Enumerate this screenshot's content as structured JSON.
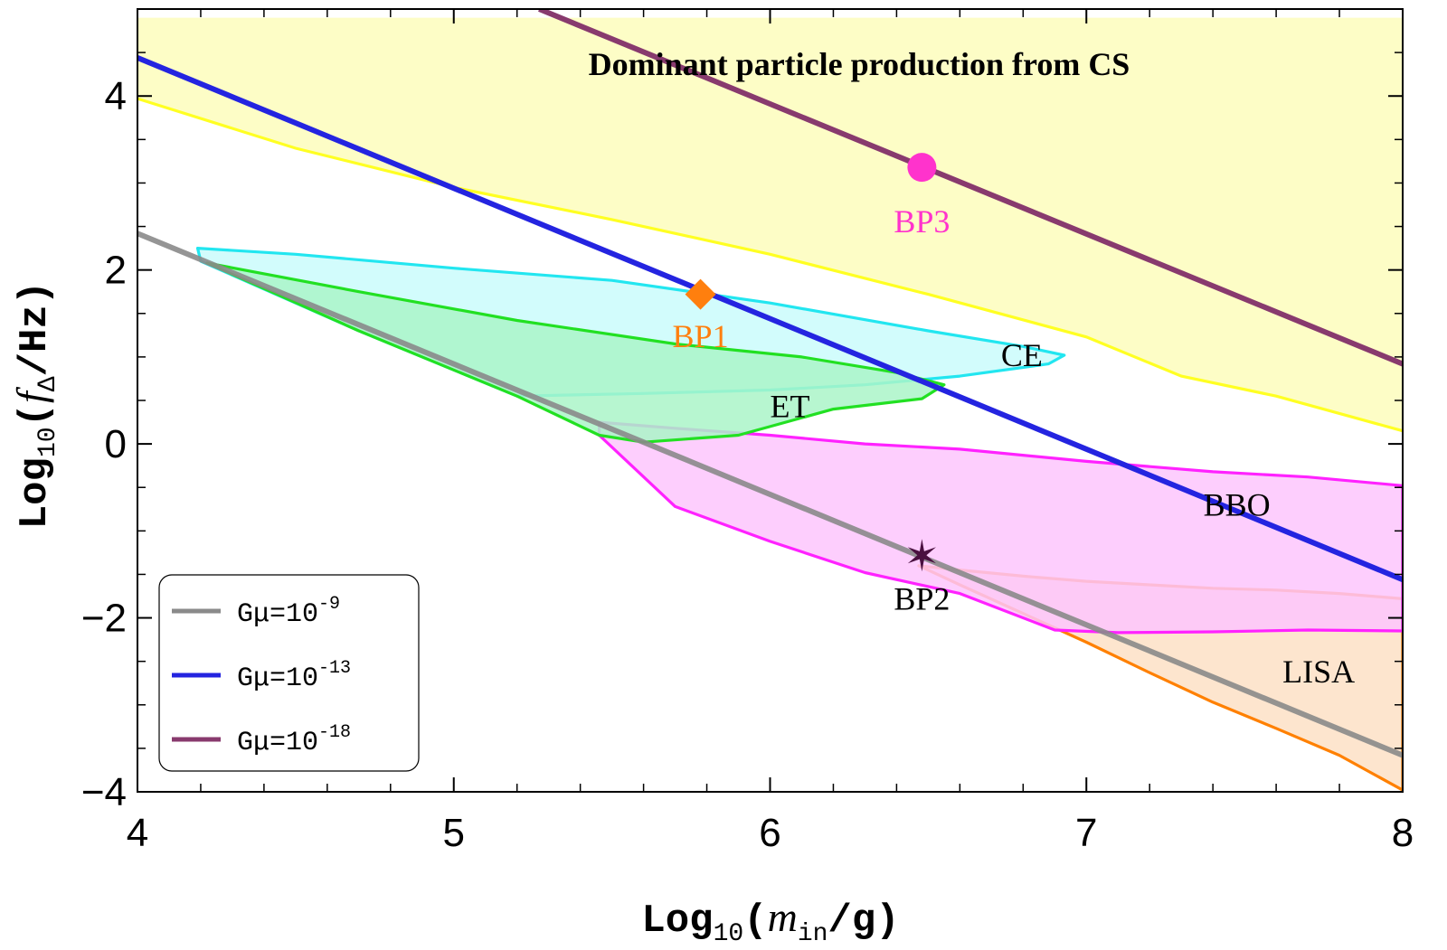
{
  "chart_data": {
    "type": "line",
    "title": "Dominant particle production from CS",
    "xlabel": {
      "main": "Log",
      "sub": "10",
      "open": "(",
      "var": "m",
      "varsub": "in",
      "rest": "/g)"
    },
    "ylabel": {
      "main": "Log",
      "sub": "10",
      "open": "(",
      "var": "f",
      "varsub": "Δ",
      "rest": "/Hz)"
    },
    "xlim": [
      4,
      8
    ],
    "ylim": [
      -4,
      5
    ],
    "xticks": [
      4,
      5,
      6,
      7,
      8
    ],
    "xtick_labels": [
      "4",
      "5",
      "6",
      "7",
      "8"
    ],
    "yticks": [
      -4,
      -2,
      0,
      2,
      4
    ],
    "ytick_labels": [
      "−4",
      "−2",
      "0",
      "2",
      "4"
    ],
    "grid": false,
    "colors": {
      "gmu9": "#8a8a8a",
      "gmu13": "#2424e0",
      "gmu18": "#883a6e",
      "yellow_fill": "#fdfdc6",
      "yellow_line": "#ffff22",
      "ce_line": "#22e6f0",
      "ce_fill": "#cafcfc",
      "et_line": "#22e022",
      "et_fill": "#aaf5c8",
      "bbo_line": "#ff22ff",
      "bbo_fill": "#fdc6fd",
      "lisa_line": "#ff8000",
      "lisa_fill": "#fde0c6",
      "bp1": "#ff7f0e",
      "bp2": "#4a1040",
      "bp3": "#ff33cc"
    },
    "series": [
      {
        "name": "Gμ=10^-9",
        "key": "gmu9",
        "x": [
          4,
          8
        ],
        "y": [
          2.42,
          -3.58
        ]
      },
      {
        "name": "Gμ=10^-13",
        "key": "gmu13",
        "x": [
          4,
          8
        ],
        "y": [
          4.44,
          -1.56
        ]
      },
      {
        "name": "Gμ=10^-18",
        "key": "gmu18",
        "x": [
          5.27,
          8
        ],
        "y": [
          5.0,
          0.92
        ]
      }
    ],
    "regions": [
      {
        "name": "Dominant particle production from CS",
        "key": "yellow",
        "x": [
          4,
          4.5,
          5,
          5.5,
          6,
          6.5,
          7,
          7.3,
          7.6,
          7.8,
          8,
          8,
          4
        ],
        "y": [
          3.97,
          3.4,
          2.95,
          2.58,
          2.18,
          1.72,
          1.23,
          0.78,
          0.55,
          0.35,
          0.15,
          4.9,
          4.9
        ]
      },
      {
        "name": "LISA",
        "key": "lisa",
        "x": [
          6.47,
          6.6,
          6.8,
          7.0,
          7.2,
          7.4,
          7.6,
          7.8,
          8.0,
          8.0,
          7.8,
          7.6,
          7.4,
          7.2,
          7.0,
          6.8,
          6.6,
          6.47
        ],
        "y": [
          -1.4,
          -1.45,
          -1.52,
          -1.58,
          -1.62,
          -1.66,
          -1.68,
          -1.72,
          -1.78,
          -3.98,
          -3.58,
          -3.27,
          -2.97,
          -2.63,
          -2.28,
          -1.95,
          -1.62,
          -1.4
        ]
      },
      {
        "name": "BBO",
        "key": "bbo",
        "x": [
          5.46,
          5.7,
          6.0,
          6.3,
          6.6,
          7.0,
          7.4,
          7.7,
          8.0,
          8.0,
          7.7,
          7.4,
          7.1,
          6.9,
          6.6,
          6.3,
          6.0,
          5.7,
          5.46
        ],
        "y": [
          0.25,
          0.18,
          0.1,
          0.0,
          -0.06,
          -0.2,
          -0.32,
          -0.38,
          -0.48,
          -2.15,
          -2.14,
          -2.16,
          -2.17,
          -2.14,
          -1.72,
          -1.48,
          -1.12,
          -0.72,
          0.1
        ]
      },
      {
        "name": "CE",
        "key": "ce",
        "x": [
          4.19,
          4.5,
          5.0,
          5.5,
          6.0,
          6.5,
          6.8,
          6.93,
          6.88,
          6.6,
          6.3,
          6.0,
          5.6,
          5.2,
          4.7,
          4.2,
          4.19
        ],
        "y": [
          2.25,
          2.18,
          2.02,
          1.88,
          1.62,
          1.3,
          1.12,
          1.02,
          0.92,
          0.78,
          0.68,
          0.62,
          0.58,
          0.55,
          1.3,
          2.1,
          2.25
        ]
      },
      {
        "name": "ET",
        "key": "et",
        "x": [
          4.22,
          4.7,
          5.2,
          5.7,
          6.1,
          6.4,
          6.55,
          6.48,
          6.2,
          5.9,
          5.6,
          5.46,
          5.2,
          4.7,
          4.22
        ],
        "y": [
          2.08,
          1.75,
          1.42,
          1.15,
          1.0,
          0.82,
          0.68,
          0.52,
          0.4,
          0.1,
          0.02,
          0.1,
          0.55,
          1.3,
          2.08
        ]
      }
    ],
    "region_labels": [
      {
        "text": "CE",
        "x": 6.73,
        "y": 1.02
      },
      {
        "text": "ET",
        "x": 6.0,
        "y": 0.43
      },
      {
        "text": "BBO",
        "x": 7.37,
        "y": -0.7
      },
      {
        "text": "LISA",
        "x": 7.62,
        "y": -2.62
      }
    ],
    "points": [
      {
        "name": "BP1",
        "x": 5.78,
        "y": 1.72,
        "marker": "diamond",
        "key": "bp1",
        "label_dy": -0.48
      },
      {
        "name": "BP2",
        "x": 6.48,
        "y": -1.28,
        "marker": "star",
        "key": "bp2",
        "label_dy": -0.5
      },
      {
        "name": "BP3",
        "x": 6.48,
        "y": 3.18,
        "marker": "circle",
        "key": "bp3",
        "label_dy": -0.62
      }
    ],
    "legend": {
      "position": "bottom-left",
      "entries": [
        {
          "key": "gmu9",
          "text": "Gμ=10",
          "exp": "-9"
        },
        {
          "key": "gmu13",
          "text": "Gμ=10",
          "exp": "-13"
        },
        {
          "key": "gmu18",
          "text": "Gμ=10",
          "exp": "-18"
        }
      ]
    }
  }
}
